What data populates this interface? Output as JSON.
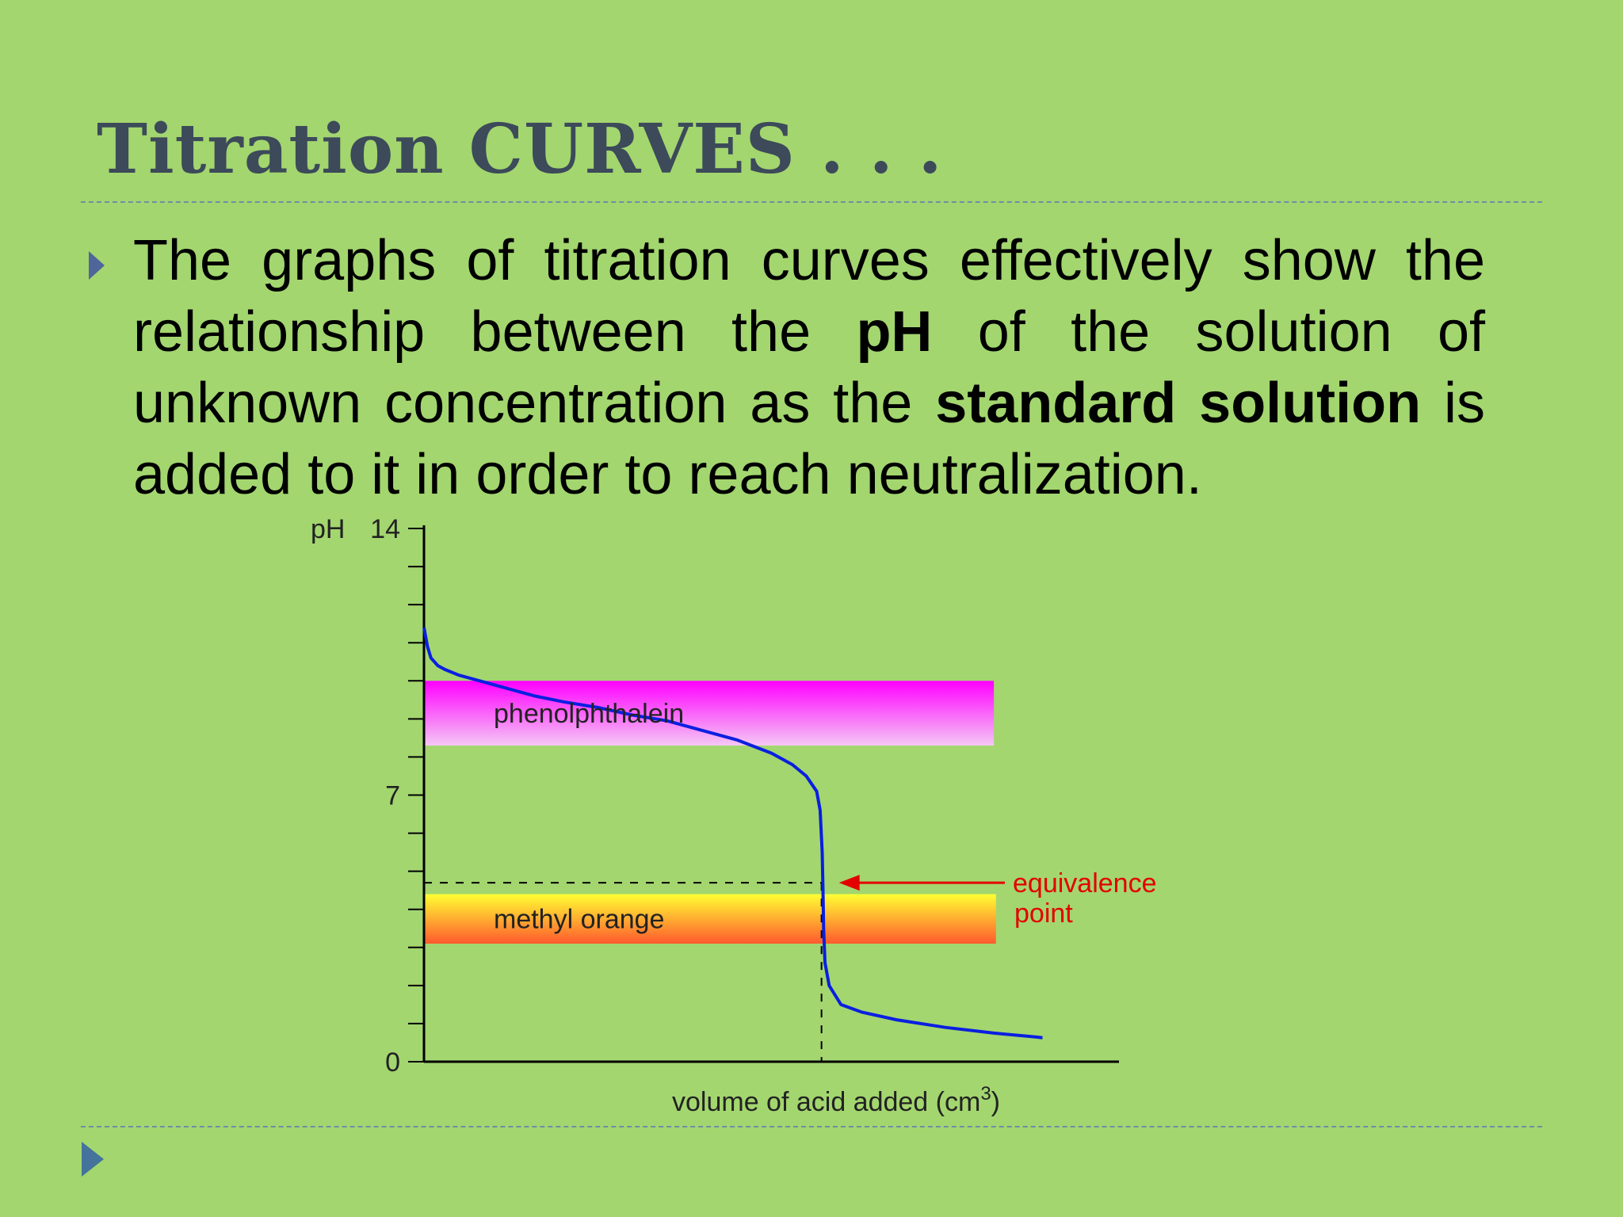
{
  "slide": {
    "title": "Titration CURVES . . .",
    "body_parts": [
      {
        "text": "The graphs of titration curves effectively show the relationship between the ",
        "bold": false
      },
      {
        "text": "pH",
        "bold": true
      },
      {
        "text": " of the solution of unknown concentration as the ",
        "bold": false
      },
      {
        "text": "standard solution",
        "bold": true
      },
      {
        "text": " is added to it in order to reach neutralization.",
        "bold": false
      }
    ]
  },
  "chart_data": {
    "type": "line",
    "title": "",
    "ylabel": "pH",
    "xlabel": "volume of acid added (cm",
    "xlabel_superscript": "3",
    "xlabel_close": ")",
    "ylim": [
      0,
      14
    ],
    "xlim": [
      0,
      100
    ],
    "y_tick_labels": [
      {
        "value": 14,
        "label": "14"
      },
      {
        "value": 7,
        "label": "7"
      },
      {
        "value": 0,
        "label": "0"
      }
    ],
    "minor_tick_step": 1,
    "series": [
      {
        "color": "#0a1fe0",
        "points": [
          [
            0,
            11.4
          ],
          [
            0.5,
            10.9
          ],
          [
            1,
            10.6
          ],
          [
            2,
            10.4
          ],
          [
            3,
            10.3
          ],
          [
            5,
            10.15
          ],
          [
            8,
            10.0
          ],
          [
            12,
            9.8
          ],
          [
            16,
            9.6
          ],
          [
            20,
            9.45
          ],
          [
            25,
            9.3
          ],
          [
            30,
            9.1
          ],
          [
            35,
            8.95
          ],
          [
            40,
            8.7
          ],
          [
            45,
            8.45
          ],
          [
            50,
            8.1
          ],
          [
            53,
            7.8
          ],
          [
            55,
            7.5
          ],
          [
            56.5,
            7.1
          ],
          [
            57,
            6.6
          ],
          [
            57.3,
            5.5
          ],
          [
            57.4,
            4.6
          ],
          [
            57.5,
            3.5
          ],
          [
            57.7,
            2.6
          ],
          [
            58.3,
            2.0
          ],
          [
            60,
            1.5
          ],
          [
            63,
            1.3
          ],
          [
            68,
            1.1
          ],
          [
            75,
            0.9
          ],
          [
            82,
            0.75
          ],
          [
            88,
            0.65
          ],
          [
            89,
            0.63
          ]
        ]
      }
    ],
    "bands": [
      {
        "label": "phenolphthalein",
        "y_from": 8.3,
        "y_to": 10.0,
        "x_from": 0,
        "x_to": 82,
        "color_top": "#ff00ff",
        "color_bottom": "#f4c8f4"
      },
      {
        "label": "methyl orange",
        "y_from": 3.1,
        "y_to": 4.4,
        "x_from": 0,
        "x_to": 82.3,
        "color_top": "#ffff33",
        "color_bottom": "#ff5a2e"
      }
    ],
    "equivalence": {
      "x": 57.2,
      "y": 4.7
    },
    "annotation": {
      "line1": "equivalence",
      "line2": "point",
      "color": "#e30000"
    },
    "grid": false,
    "legend": "none"
  }
}
